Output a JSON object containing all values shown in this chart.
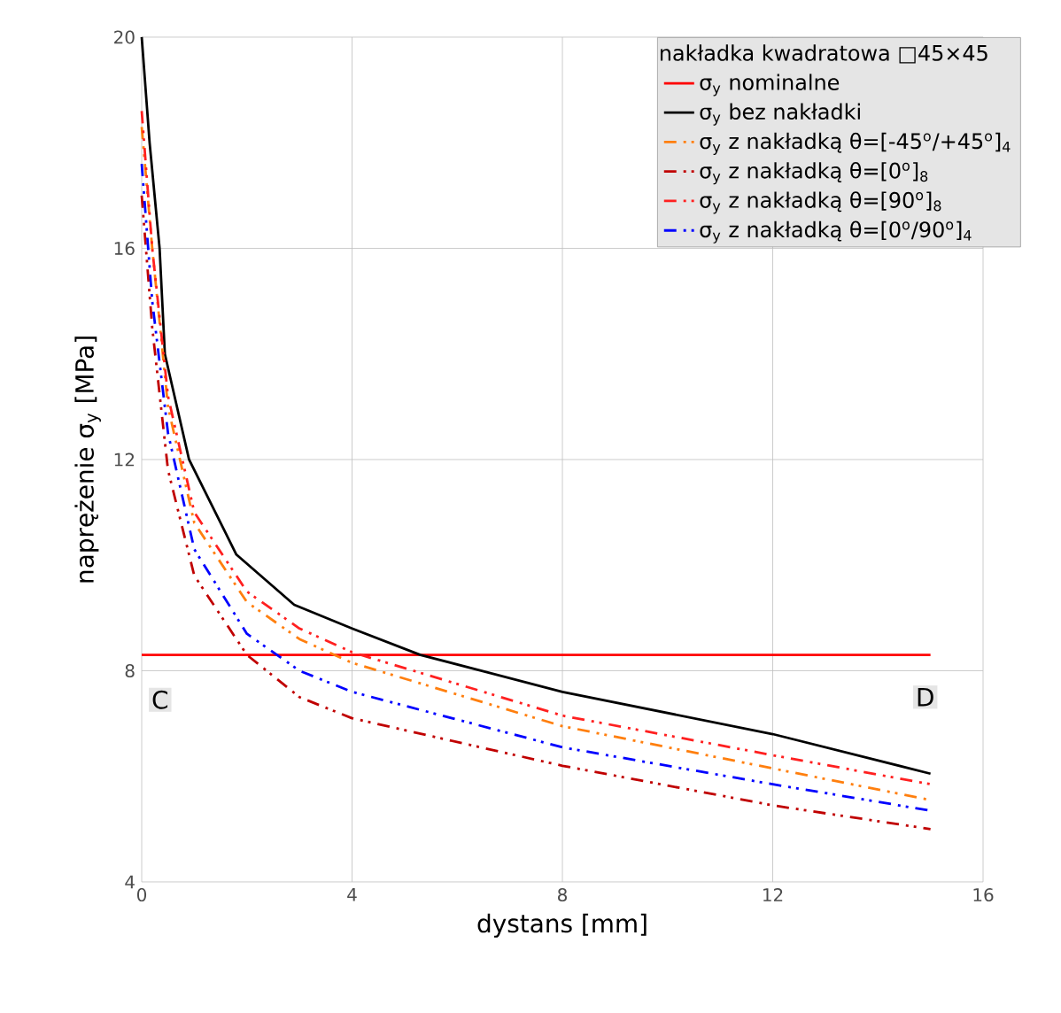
{
  "chart_data": {
    "type": "line",
    "xlabel": "dystans [mm]",
    "ylabel": "naprężenie  σ$_{y}$ [MPa]",
    "legend_title": "nakładka kwadratowa □45×45",
    "xlim": [
      0,
      16
    ],
    "ylim": [
      4,
      20
    ],
    "xticks": [
      0,
      4,
      8,
      12,
      16
    ],
    "yticks": [
      4,
      8,
      12,
      16,
      20
    ],
    "grid": true,
    "legend": "top right",
    "series": [
      {
        "name": "σ$_{y}$ nominalne",
        "color": "#ff0000",
        "line_style": "solid",
        "x": [
          0,
          15
        ],
        "values": [
          8.3,
          8.3
        ]
      },
      {
        "name": "σ$_{y}$ bez nakładki",
        "color": "#000000",
        "line_style": "solid",
        "x": [
          0,
          0.15,
          0.34,
          0.44,
          0.9,
          1.8,
          2.9,
          4,
          5.3,
          8,
          12,
          15
        ],
        "values": [
          20,
          18,
          16,
          14,
          12,
          10.2,
          9.25,
          8.8,
          8.3,
          7.6,
          6.8,
          6.05
        ]
      },
      {
        "name": "σ$_{y}$ z nakładką θ=[-45$^{o}$/+45$^{o}$]$_{4}$",
        "color": "#ff7f0e",
        "line_style": "dashed",
        "x": [
          0,
          0.2,
          0.5,
          1,
          2,
          3,
          4,
          8,
          12,
          15
        ],
        "values": [
          18.3,
          16,
          13,
          10.8,
          9.3,
          8.6,
          8.15,
          6.95,
          6.15,
          5.55
        ]
      },
      {
        "name": "σ$_{y}$ z nakładką θ=[0$^{o}$]$_{8}$",
        "color": "#c00000",
        "line_style": "dashed",
        "x": [
          0,
          0.2,
          0.5,
          1,
          2,
          3,
          4,
          8,
          12,
          15
        ],
        "values": [
          17,
          14.5,
          11.8,
          9.8,
          8.3,
          7.5,
          7.1,
          6.2,
          5.45,
          5.0
        ]
      },
      {
        "name": "σ$_{y}$ z nakładką θ=[90$^{o}$]$_{8}$",
        "color": "#ff2020",
        "line_style": "dashed",
        "x": [
          0,
          0.2,
          0.5,
          1,
          2,
          3,
          4,
          8,
          12,
          15
        ],
        "values": [
          18.6,
          16,
          13.2,
          11,
          9.5,
          8.8,
          8.35,
          7.15,
          6.4,
          5.85
        ]
      },
      {
        "name": "σ$_{y}$ z nakładką θ=[0$^{o}$/90$^{o}$]$_{4}$",
        "color": "#0000ff",
        "line_style": "dashed",
        "x": [
          0,
          0.2,
          0.5,
          1,
          2,
          3,
          4,
          8,
          12,
          15
        ],
        "values": [
          17.6,
          15,
          12.5,
          10.3,
          8.7,
          8,
          7.6,
          6.55,
          5.85,
          5.35
        ]
      }
    ],
    "annotations": [
      {
        "text": "C",
        "x": 0.35,
        "y": 7.45
      },
      {
        "text": "D",
        "x": 14.9,
        "y": 7.5
      }
    ]
  }
}
